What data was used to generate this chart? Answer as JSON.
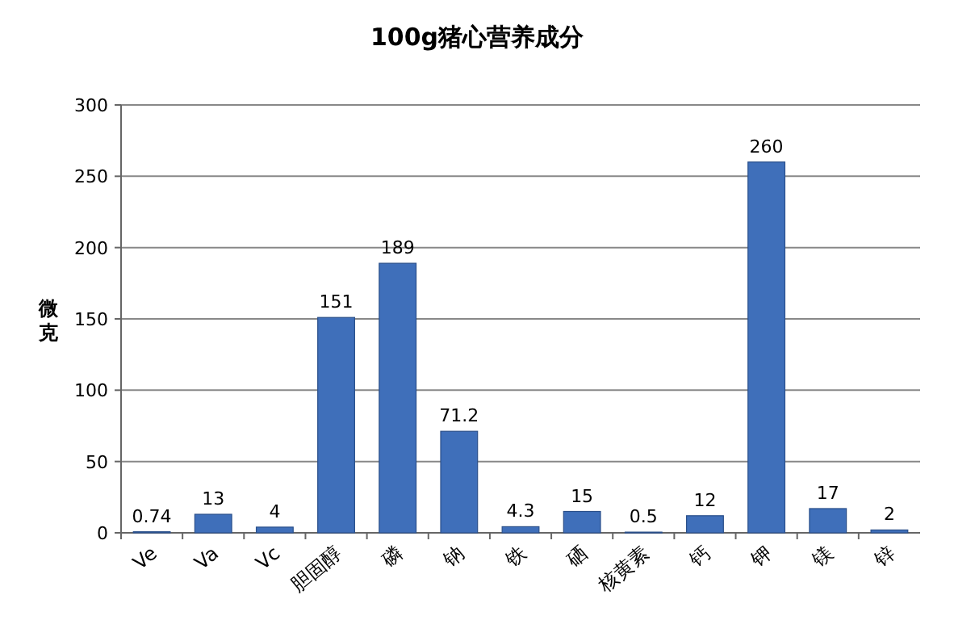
{
  "chart_data": {
    "type": "bar",
    "title": "100g猪心营养成分",
    "ylabel": "微克",
    "categories": [
      "Ve",
      "Va",
      "Vc",
      "胆固醇",
      "磷",
      "钠",
      "铁",
      "硒",
      "核黄素",
      "钙",
      "钾",
      "镁",
      "锌"
    ],
    "values": [
      0.74,
      13,
      4,
      151,
      189,
      71.2,
      4.3,
      15,
      0.5,
      12,
      260,
      17,
      2
    ],
    "color": "#3f6fba",
    "ylim": [
      0,
      300
    ],
    "yticks": [
      0,
      50,
      100,
      150,
      200,
      250,
      300
    ],
    "grid": "y",
    "data_labels": true
  }
}
